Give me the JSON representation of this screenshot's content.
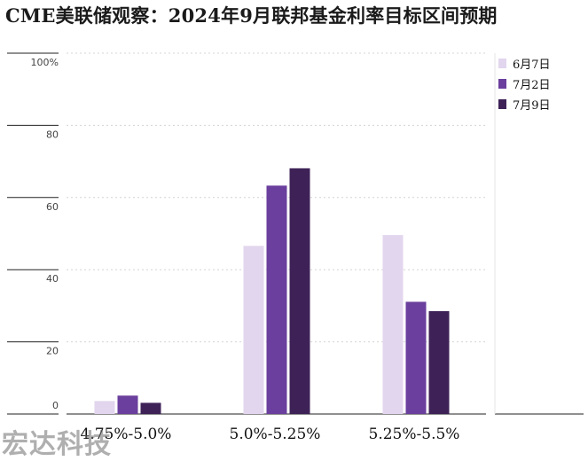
{
  "title": "CME美联储观察：2024年9月联邦基金利率目标区间预期",
  "watermark": "宏达科技",
  "colors": {
    "series": [
      "#e2d5ee",
      "#6a3f9d",
      "#3e2257"
    ],
    "grid": "#d4d4d4",
    "axis": "#222222",
    "text": "#1a1a1a"
  },
  "chart_data": {
    "type": "bar",
    "categories": [
      "4.75%-5.0%",
      "5.0%-5.25%",
      "5.25%-5.5%"
    ],
    "series": [
      {
        "name": "6月7日",
        "values": [
          3.6,
          46.6,
          49.6
        ]
      },
      {
        "name": "7月2日",
        "values": [
          5.1,
          63.3,
          31.1
        ]
      },
      {
        "name": "7月9日",
        "values": [
          3.1,
          68.1,
          28.5
        ]
      }
    ],
    "ylim": [
      0,
      100
    ],
    "yticks": [
      0,
      20,
      40,
      60,
      80,
      100
    ],
    "yticklabels": [
      "0",
      "20",
      "40",
      "60",
      "80",
      "100%"
    ],
    "grid": true,
    "legend_position": "top-right"
  }
}
